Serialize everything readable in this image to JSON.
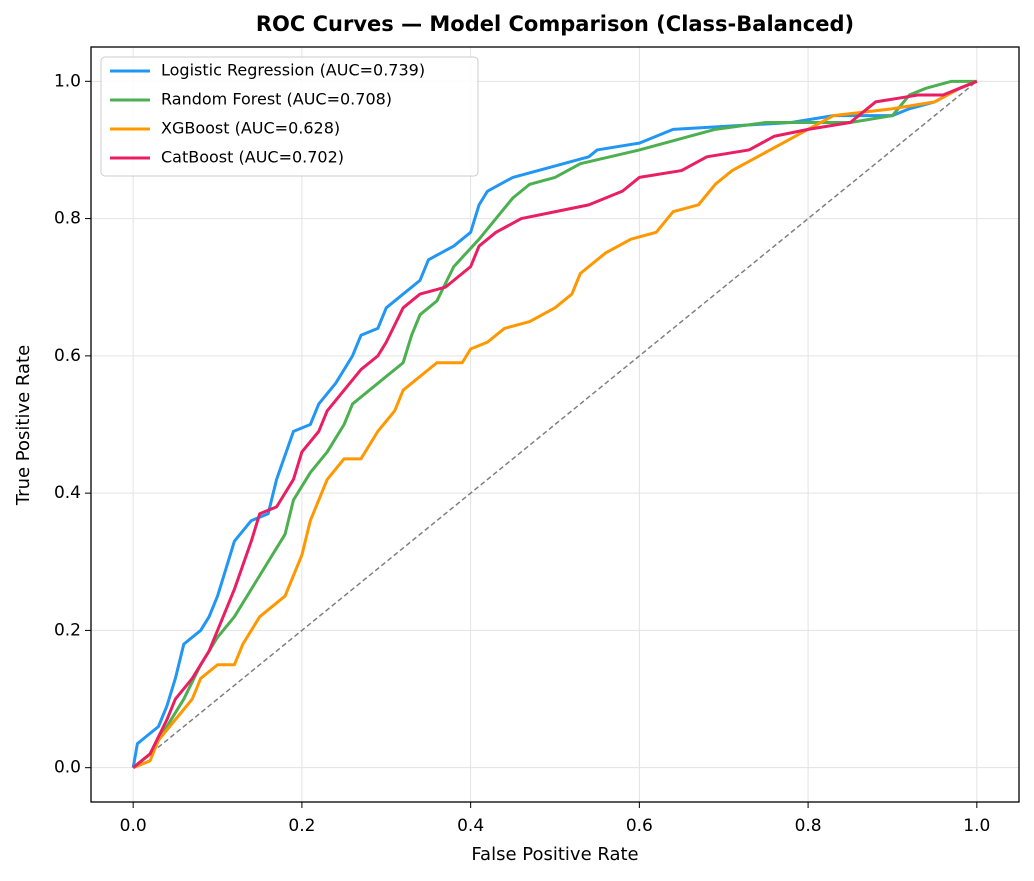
{
  "chart_data": {
    "type": "line",
    "title": "ROC Curves — Model Comparison (Class-Balanced)",
    "xlabel": "False Positive Rate",
    "ylabel": "True Positive Rate",
    "xlim": [
      -0.05,
      1.05
    ],
    "ylim": [
      -0.05,
      1.05
    ],
    "xticks": [
      {
        "value": 0,
        "label": "0.0"
      },
      0.2,
      0.4,
      0.6,
      0.8,
      {
        "value": 1,
        "label": "1.0"
      }
    ],
    "yticks": [
      {
        "value": 0,
        "label": "0.0"
      },
      0.2,
      0.4,
      0.6,
      0.8,
      {
        "value": 1,
        "label": "1.0"
      }
    ],
    "grid": true,
    "legend": "upper left",
    "reference_line": {
      "x": [
        0,
        1
      ],
      "y": [
        0,
        1
      ],
      "color": "#808080"
    },
    "series": [
      {
        "name": "Logistic Regression (AUC=0.739)",
        "color": "#2196f3",
        "x": [
          0,
          0.005,
          0.01,
          0.03,
          0.04,
          0.05,
          0.06,
          0.08,
          0.09,
          0.1,
          0.11,
          0.12,
          0.14,
          0.16,
          0.17,
          0.19,
          0.21,
          0.22,
          0.24,
          0.26,
          0.27,
          0.29,
          0.3,
          0.32,
          0.34,
          0.35,
          0.38,
          0.4,
          0.41,
          0.42,
          0.45,
          0.48,
          0.51,
          0.54,
          0.55,
          0.6,
          0.64,
          0.78,
          0.83,
          0.9,
          0.92,
          0.95,
          0.98,
          1
        ],
        "values": [
          0,
          0.035,
          0.04,
          0.06,
          0.09,
          0.13,
          0.18,
          0.2,
          0.22,
          0.25,
          0.29,
          0.33,
          0.36,
          0.37,
          0.42,
          0.49,
          0.5,
          0.53,
          0.56,
          0.6,
          0.63,
          0.64,
          0.67,
          0.69,
          0.71,
          0.74,
          0.76,
          0.78,
          0.82,
          0.84,
          0.86,
          0.87,
          0.88,
          0.89,
          0.9,
          0.91,
          0.93,
          0.94,
          0.95,
          0.95,
          0.96,
          0.97,
          0.99,
          1
        ]
      },
      {
        "name": "Random Forest (AUC=0.708)",
        "color": "#4caf50",
        "x": [
          0,
          0.02,
          0.04,
          0.06,
          0.08,
          0.1,
          0.12,
          0.14,
          0.16,
          0.18,
          0.19,
          0.21,
          0.23,
          0.25,
          0.26,
          0.28,
          0.3,
          0.32,
          0.33,
          0.34,
          0.36,
          0.38,
          0.41,
          0.43,
          0.45,
          0.47,
          0.5,
          0.53,
          0.6,
          0.63,
          0.66,
          0.69,
          0.75,
          0.85,
          0.9,
          0.92,
          0.94,
          0.97,
          1
        ],
        "values": [
          0,
          0.02,
          0.06,
          0.1,
          0.15,
          0.19,
          0.22,
          0.26,
          0.3,
          0.34,
          0.39,
          0.43,
          0.46,
          0.5,
          0.53,
          0.55,
          0.57,
          0.59,
          0.63,
          0.66,
          0.68,
          0.73,
          0.77,
          0.8,
          0.83,
          0.85,
          0.86,
          0.88,
          0.9,
          0.91,
          0.92,
          0.93,
          0.94,
          0.94,
          0.95,
          0.98,
          0.99,
          1,
          1
        ]
      },
      {
        "name": "XGBoost (AUC=0.628)",
        "color": "#ff9800",
        "x": [
          0,
          0.02,
          0.03,
          0.05,
          0.07,
          0.08,
          0.1,
          0.12,
          0.13,
          0.15,
          0.18,
          0.19,
          0.2,
          0.21,
          0.22,
          0.23,
          0.25,
          0.27,
          0.29,
          0.31,
          0.32,
          0.34,
          0.36,
          0.39,
          0.4,
          0.42,
          0.44,
          0.47,
          0.5,
          0.52,
          0.53,
          0.56,
          0.59,
          0.62,
          0.64,
          0.67,
          0.69,
          0.71,
          0.74,
          0.77,
          0.8,
          0.83,
          0.9,
          0.95,
          0.98,
          1
        ],
        "values": [
          0,
          0.01,
          0.04,
          0.07,
          0.1,
          0.13,
          0.15,
          0.15,
          0.18,
          0.22,
          0.25,
          0.28,
          0.31,
          0.36,
          0.39,
          0.42,
          0.45,
          0.45,
          0.49,
          0.52,
          0.55,
          0.57,
          0.59,
          0.59,
          0.61,
          0.62,
          0.64,
          0.65,
          0.67,
          0.69,
          0.72,
          0.75,
          0.77,
          0.78,
          0.81,
          0.82,
          0.85,
          0.87,
          0.89,
          0.91,
          0.93,
          0.95,
          0.96,
          0.97,
          0.99,
          1
        ]
      },
      {
        "name": "CatBoost (AUC=0.702)",
        "color": "#e91e63",
        "x": [
          0,
          0.02,
          0.04,
          0.05,
          0.07,
          0.09,
          0.1,
          0.12,
          0.14,
          0.15,
          0.17,
          0.19,
          0.2,
          0.22,
          0.23,
          0.25,
          0.27,
          0.29,
          0.3,
          0.32,
          0.34,
          0.37,
          0.4,
          0.41,
          0.43,
          0.46,
          0.5,
          0.54,
          0.58,
          0.6,
          0.65,
          0.68,
          0.73,
          0.76,
          0.8,
          0.85,
          0.88,
          0.93,
          0.96,
          1
        ],
        "values": [
          0,
          0.02,
          0.07,
          0.1,
          0.13,
          0.17,
          0.2,
          0.26,
          0.33,
          0.37,
          0.38,
          0.42,
          0.46,
          0.49,
          0.52,
          0.55,
          0.58,
          0.6,
          0.62,
          0.67,
          0.69,
          0.7,
          0.73,
          0.76,
          0.78,
          0.8,
          0.81,
          0.82,
          0.84,
          0.86,
          0.87,
          0.89,
          0.9,
          0.92,
          0.93,
          0.94,
          0.97,
          0.98,
          0.98,
          1
        ]
      }
    ]
  }
}
